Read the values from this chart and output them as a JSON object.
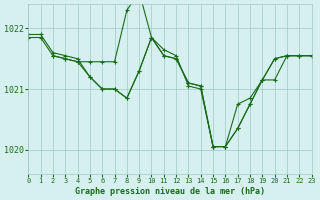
{
  "background_color": "#d6f0f0",
  "grid_color": "#a0c8c8",
  "line_color": "#1a6b1a",
  "marker_color": "#1a6b1a",
  "xlabel": "Graphe pression niveau de la mer (hPa)",
  "xlim": [
    0,
    23
  ],
  "ylim": [
    1019.6,
    1022.4
  ],
  "yticks": [
    1020,
    1021,
    1022
  ],
  "xticks": [
    0,
    1,
    2,
    3,
    4,
    5,
    6,
    7,
    8,
    9,
    10,
    11,
    12,
    13,
    14,
    15,
    16,
    17,
    18,
    19,
    20,
    21,
    22,
    23
  ],
  "series": [
    {
      "x": [
        0,
        1,
        2,
        3,
        4,
        5,
        6,
        7,
        8,
        9,
        10,
        11,
        12,
        13,
        14,
        15,
        16,
        17,
        18,
        19,
        20,
        21,
        22,
        23
      ],
      "y": [
        1021.9,
        1021.9,
        1021.6,
        1021.55,
        1021.5,
        1021.2,
        1021.0,
        1021.0,
        1020.85,
        1021.3,
        1021.85,
        1021.55,
        1021.5,
        1021.1,
        1021.05,
        1020.05,
        1020.05,
        1020.35,
        1020.75,
        1021.15,
        1021.5,
        1021.55,
        1021.55,
        1021.55
      ]
    },
    {
      "x": [
        0,
        1,
        2,
        3,
        4,
        5,
        6,
        7,
        8,
        9,
        10,
        11,
        12,
        13,
        14,
        15,
        16,
        17,
        18,
        19,
        20,
        21,
        22,
        23
      ],
      "y": [
        1021.85,
        1021.85,
        1021.55,
        1021.5,
        1021.45,
        1021.45,
        1021.45,
        1021.45,
        1022.3,
        1022.6,
        1021.85,
        1021.65,
        1021.55,
        1021.05,
        1021.0,
        1020.05,
        1020.05,
        1020.75,
        1020.85,
        1021.15,
        1021.15,
        1021.55,
        1021.55,
        1021.55
      ]
    },
    {
      "x": [
        2,
        3,
        4,
        5,
        6,
        7,
        8,
        9,
        10,
        11,
        12,
        13,
        14,
        15,
        16,
        17,
        18,
        19,
        20,
        21,
        22,
        23
      ],
      "y": [
        1021.55,
        1021.5,
        1021.45,
        1021.2,
        1021.0,
        1021.0,
        1020.85,
        1021.3,
        1021.85,
        1021.55,
        1021.5,
        1021.1,
        1021.05,
        1020.05,
        1020.05,
        1020.35,
        1020.75,
        1021.15,
        1021.5,
        1021.55,
        1021.55,
        1021.55
      ]
    }
  ]
}
